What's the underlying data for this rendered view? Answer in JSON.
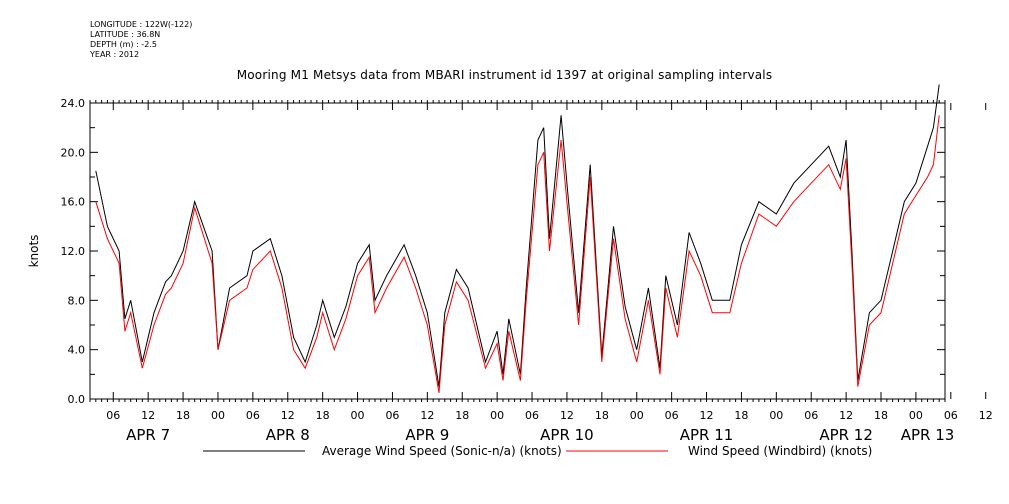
{
  "header": {
    "longitude": "LONGITUDE : 122W(-122)",
    "latitude": "LATITUDE : 36.8N",
    "depth": "DEPTH (m) : -2.5",
    "year": "YEAR : 2012"
  },
  "chart_data": {
    "type": "line",
    "title": "Mooring M1 Metsys data from MBARI instrument id 1397 at original sampling intervals",
    "ylabel": "knots",
    "xlabel": "",
    "ylim": [
      0,
      24.0
    ],
    "yticks": [
      "0.0",
      "4.0",
      "8.0",
      "12.0",
      "16.0",
      "20.0",
      "24.0"
    ],
    "hour_ticks": [
      "06",
      "12",
      "18",
      "00",
      "06",
      "12",
      "18",
      "00",
      "06",
      "12",
      "18",
      "00",
      "06",
      "12",
      "18",
      "00",
      "06",
      "12",
      "18",
      "00",
      "06",
      "12",
      "18",
      "00",
      "06",
      "12",
      "18",
      "00"
    ],
    "day_labels": [
      "APR  7",
      "APR  8",
      "APR  9",
      "APR 10",
      "APR 11",
      "APR 12",
      "APR 13"
    ],
    "series": [
      {
        "name": "Average Wind Speed (Sonic-n/a) (knots)",
        "color": "#000000",
        "x": [
          "2012-04-07 03:00",
          "2012-04-07 05:00",
          "2012-04-07 07:00",
          "2012-04-07 08:00",
          "2012-04-07 09:00",
          "2012-04-07 11:00",
          "2012-04-07 13:00",
          "2012-04-07 15:00",
          "2012-04-07 16:00",
          "2012-04-07 18:00",
          "2012-04-07 20:00",
          "2012-04-07 23:00",
          "2012-04-08 00:00",
          "2012-04-08 02:00",
          "2012-04-08 05:00",
          "2012-04-08 06:00",
          "2012-04-08 09:00",
          "2012-04-08 11:00",
          "2012-04-08 13:00",
          "2012-04-08 15:00",
          "2012-04-08 17:00",
          "2012-04-08 18:00",
          "2012-04-08 20:00",
          "2012-04-08 22:00",
          "2012-04-09 00:00",
          "2012-04-09 02:00",
          "2012-04-09 03:00",
          "2012-04-09 05:00",
          "2012-04-09 08:00",
          "2012-04-09 10:00",
          "2012-04-09 12:00",
          "2012-04-09 14:00",
          "2012-04-09 15:00",
          "2012-04-09 17:00",
          "2012-04-09 19:00",
          "2012-04-09 22:00",
          "2012-04-10 00:00",
          "2012-04-10 01:00",
          "2012-04-10 02:00",
          "2012-04-10 04:00",
          "2012-04-10 05:00",
          "2012-04-10 07:00",
          "2012-04-10 08:00",
          "2012-04-10 09:00",
          "2012-04-10 11:00",
          "2012-04-10 12:00",
          "2012-04-10 14:00",
          "2012-04-10 16:00",
          "2012-04-10 18:00",
          "2012-04-10 20:00",
          "2012-04-10 22:00",
          "2012-04-11 00:00",
          "2012-04-11 02:00",
          "2012-04-11 04:00",
          "2012-04-11 05:00",
          "2012-04-11 07:00",
          "2012-04-11 09:00",
          "2012-04-11 11:00",
          "2012-04-11 13:00",
          "2012-04-11 16:00",
          "2012-04-11 18:00",
          "2012-04-11 21:00",
          "2012-04-12 00:00",
          "2012-04-12 03:00",
          "2012-04-12 06:00",
          "2012-04-12 09:00",
          "2012-04-12 11:00",
          "2012-04-12 12:00",
          "2012-04-12 13:00",
          "2012-04-12 14:00",
          "2012-04-12 16:00",
          "2012-04-12 18:00",
          "2012-04-12 20:00",
          "2012-04-12 22:00",
          "2012-04-13 00:00",
          "2012-04-13 02:00",
          "2012-04-13 03:00",
          "2012-04-13 04:00"
        ],
        "values": [
          18.5,
          14.0,
          12.0,
          6.5,
          8.0,
          3.0,
          7.0,
          9.5,
          10.0,
          12.0,
          16.0,
          12.0,
          4.0,
          9.0,
          10.0,
          12.0,
          13.0,
          10.0,
          5.0,
          3.0,
          6.0,
          8.0,
          5.0,
          7.5,
          11.0,
          12.5,
          8.0,
          10.0,
          12.5,
          10.0,
          7.0,
          1.0,
          7.0,
          10.5,
          9.0,
          3.0,
          5.5,
          2.0,
          6.5,
          2.0,
          9.0,
          21.0,
          22.0,
          13.0,
          23.0,
          17.5,
          7.0,
          19.0,
          3.5,
          14.0,
          7.5,
          4.0,
          9.0,
          2.5,
          10.0,
          6.0,
          13.5,
          11.0,
          8.0,
          8.0,
          12.5,
          16.0,
          15.0,
          17.5,
          19.0,
          20.5,
          18.0,
          21.0,
          12.0,
          1.5,
          7.0,
          8.0,
          12.0,
          16.0,
          17.5,
          20.5,
          22.0,
          25.5
        ]
      },
      {
        "name": "Wind Speed (Windbird) (knots)",
        "color": "#ff0000",
        "x": [
          "2012-04-07 03:00",
          "2012-04-07 05:00",
          "2012-04-07 07:00",
          "2012-04-07 08:00",
          "2012-04-07 09:00",
          "2012-04-07 11:00",
          "2012-04-07 13:00",
          "2012-04-07 15:00",
          "2012-04-07 16:00",
          "2012-04-07 18:00",
          "2012-04-07 20:00",
          "2012-04-07 23:00",
          "2012-04-08 00:00",
          "2012-04-08 02:00",
          "2012-04-08 05:00",
          "2012-04-08 06:00",
          "2012-04-08 09:00",
          "2012-04-08 11:00",
          "2012-04-08 13:00",
          "2012-04-08 15:00",
          "2012-04-08 17:00",
          "2012-04-08 18:00",
          "2012-04-08 20:00",
          "2012-04-08 22:00",
          "2012-04-09 00:00",
          "2012-04-09 02:00",
          "2012-04-09 03:00",
          "2012-04-09 05:00",
          "2012-04-09 08:00",
          "2012-04-09 10:00",
          "2012-04-09 12:00",
          "2012-04-09 14:00",
          "2012-04-09 15:00",
          "2012-04-09 17:00",
          "2012-04-09 19:00",
          "2012-04-09 22:00",
          "2012-04-10 00:00",
          "2012-04-10 01:00",
          "2012-04-10 02:00",
          "2012-04-10 04:00",
          "2012-04-10 05:00",
          "2012-04-10 07:00",
          "2012-04-10 08:00",
          "2012-04-10 09:00",
          "2012-04-10 11:00",
          "2012-04-10 12:00",
          "2012-04-10 14:00",
          "2012-04-10 16:00",
          "2012-04-10 18:00",
          "2012-04-10 20:00",
          "2012-04-10 22:00",
          "2012-04-11 00:00",
          "2012-04-11 02:00",
          "2012-04-11 04:00",
          "2012-04-11 05:00",
          "2012-04-11 07:00",
          "2012-04-11 09:00",
          "2012-04-11 11:00",
          "2012-04-11 13:00",
          "2012-04-11 16:00",
          "2012-04-11 18:00",
          "2012-04-11 21:00",
          "2012-04-12 00:00",
          "2012-04-12 03:00",
          "2012-04-12 06:00",
          "2012-04-12 09:00",
          "2012-04-12 11:00",
          "2012-04-12 12:00",
          "2012-04-12 13:00",
          "2012-04-12 14:00",
          "2012-04-12 16:00",
          "2012-04-12 18:00",
          "2012-04-12 20:00",
          "2012-04-12 22:00",
          "2012-04-13 00:00",
          "2012-04-13 02:00",
          "2012-04-13 03:00",
          "2012-04-13 04:00"
        ],
        "values": [
          16.0,
          13.0,
          11.0,
          5.5,
          7.0,
          2.5,
          6.0,
          8.5,
          9.0,
          11.0,
          15.5,
          11.0,
          4.0,
          8.0,
          9.0,
          10.5,
          12.0,
          9.0,
          4.0,
          2.5,
          5.0,
          7.0,
          4.0,
          6.5,
          10.0,
          11.5,
          7.0,
          9.0,
          11.5,
          9.0,
          6.0,
          0.5,
          6.0,
          9.5,
          8.0,
          2.5,
          4.5,
          1.5,
          5.5,
          1.5,
          8.0,
          19.0,
          20.0,
          12.0,
          21.0,
          16.0,
          6.0,
          18.0,
          3.0,
          13.0,
          6.5,
          3.0,
          8.0,
          2.0,
          9.0,
          5.0,
          12.0,
          10.0,
          7.0,
          7.0,
          11.0,
          15.0,
          14.0,
          16.0,
          17.5,
          19.0,
          17.0,
          19.5,
          11.0,
          1.0,
          6.0,
          7.0,
          11.0,
          15.0,
          16.5,
          18.0,
          19.0,
          23.0
        ]
      }
    ],
    "xlim": [
      "2012-04-07 02:00",
      "2012-04-13 05:00"
    ]
  }
}
